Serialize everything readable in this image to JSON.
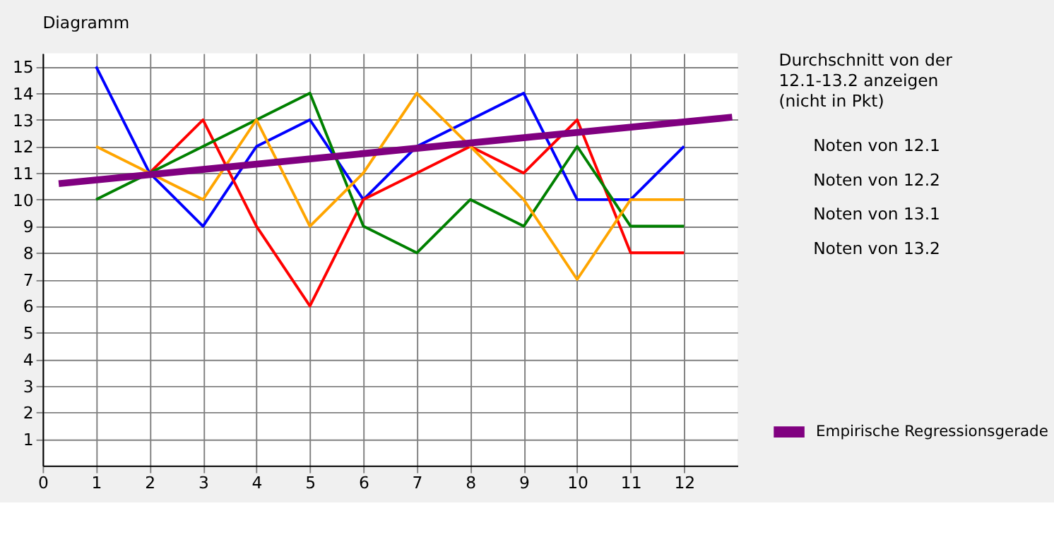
{
  "chart_data": {
    "type": "line",
    "title": "Diagramm",
    "x": [
      1,
      2,
      3,
      4,
      5,
      6,
      7,
      8,
      9,
      10,
      11,
      12
    ],
    "series": [
      {
        "color": "#0000ff",
        "values": [
          15,
          11,
          9,
          12,
          13,
          10,
          12,
          13,
          14,
          10,
          10,
          12
        ]
      },
      {
        "color": "#ff0000",
        "values": [
          null,
          11,
          13,
          9,
          6,
          10,
          11,
          12,
          11,
          13,
          8,
          8
        ]
      },
      {
        "color": "#008000",
        "values": [
          10,
          11,
          12,
          13,
          14,
          9,
          8,
          10,
          9,
          12,
          9,
          9
        ]
      },
      {
        "color": "#ffa500",
        "values": [
          12,
          11,
          10,
          13,
          9,
          11,
          14,
          12,
          10,
          7,
          10,
          10
        ]
      },
      {
        "name": "Empirische Regressionsgerade",
        "color": "#800080",
        "x": [
          0.3,
          12.9
        ],
        "values": [
          10.6,
          13.1
        ]
      }
    ],
    "xlim": [
      0,
      13
    ],
    "ylim": [
      0,
      15.5
    ],
    "xticks": [
      0,
      1,
      2,
      3,
      4,
      5,
      6,
      7,
      8,
      9,
      10,
      11,
      12
    ],
    "yticks": [
      1,
      2,
      3,
      4,
      5,
      6,
      7,
      8,
      9,
      10,
      11,
      12,
      13,
      14,
      15
    ],
    "grid": true,
    "legend": "right",
    "marker": "none",
    "line_style": "solid",
    "annotations": [
      "Durchschnitt von der 12.1-13.2 anzeigen (nicht in Pkt)",
      "Noten von 12.1",
      "Noten von 12.2",
      "Noten von 13.1",
      "Noten von 13.2"
    ]
  }
}
